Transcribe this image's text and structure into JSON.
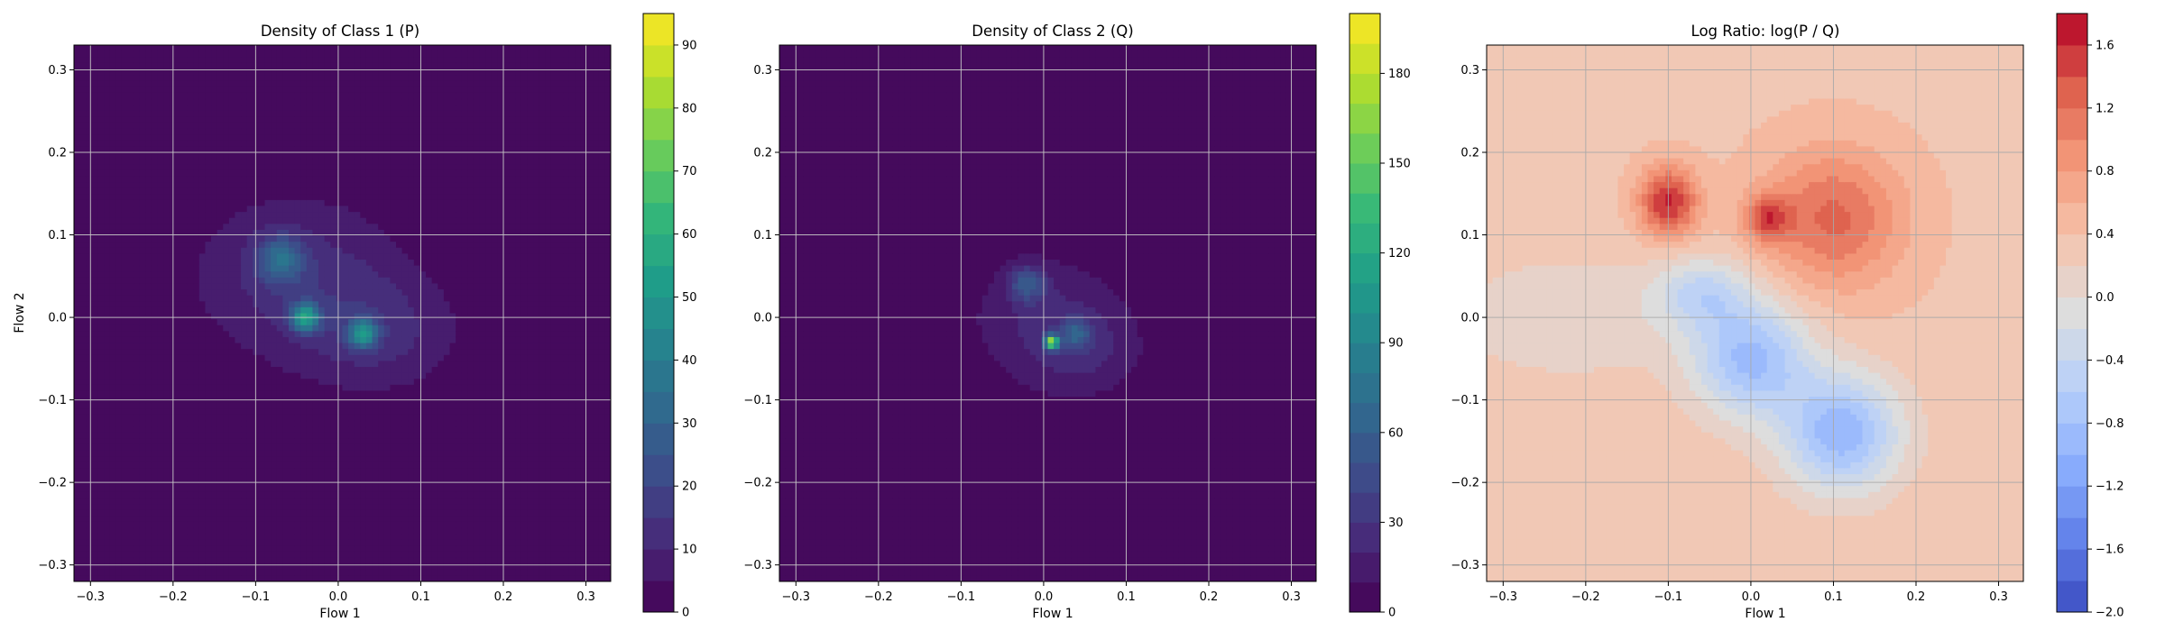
{
  "chart_data": [
    {
      "type": "heatmap",
      "title": "Density of Class 1 (P)",
      "xlabel": "Flow 1",
      "ylabel": "Flow 2",
      "xlim": [
        -0.32,
        0.33
      ],
      "ylim": [
        -0.32,
        0.33
      ],
      "xticks": [
        "−0.3",
        "−0.2",
        "−0.1",
        "0.0",
        "0.1",
        "0.2",
        "0.3"
      ],
      "yticks": [
        "−0.3",
        "−0.2",
        "−0.1",
        "0.0",
        "0.1",
        "0.2",
        "0.3"
      ],
      "grid": true,
      "colormap": "viridis",
      "colorbar": {
        "min": 0,
        "max": 95,
        "ticks": [
          "0",
          "10",
          "20",
          "30",
          "40",
          "50",
          "60",
          "70",
          "80",
          "90"
        ]
      },
      "blobs": [
        {
          "x": -0.05,
          "y": 0.05,
          "sx": 0.09,
          "sy": 0.07,
          "level": 12
        },
        {
          "x": 0.05,
          "y": -0.02,
          "sx": 0.07,
          "sy": 0.05,
          "level": 10
        },
        {
          "x": -0.04,
          "y": 0.0,
          "sx": 0.012,
          "sy": 0.012,
          "level": 45
        },
        {
          "x": 0.03,
          "y": -0.02,
          "sx": 0.012,
          "sy": 0.012,
          "level": 40
        },
        {
          "x": -0.07,
          "y": 0.07,
          "sx": 0.02,
          "sy": 0.02,
          "level": 25
        }
      ]
    },
    {
      "type": "heatmap",
      "title": "Density of Class 2 (Q)",
      "xlabel": "Flow 1",
      "ylabel": "",
      "xlim": [
        -0.32,
        0.33
      ],
      "ylim": [
        -0.32,
        0.33
      ],
      "xticks": [
        "−0.3",
        "−0.2",
        "−0.1",
        "0.0",
        "0.1",
        "0.2",
        "0.3"
      ],
      "yticks": [
        "−0.3",
        "−0.2",
        "−0.1",
        "0.0",
        "0.1",
        "0.2",
        "0.3"
      ],
      "grid": true,
      "colormap": "viridis",
      "colorbar": {
        "min": 0,
        "max": 200,
        "ticks": [
          "0",
          "30",
          "60",
          "90",
          "120",
          "150",
          "180"
        ]
      },
      "blobs": [
        {
          "x": 0.0,
          "y": 0.0,
          "sx": 0.07,
          "sy": 0.06,
          "level": 18
        },
        {
          "x": 0.05,
          "y": -0.04,
          "sx": 0.05,
          "sy": 0.04,
          "level": 16
        },
        {
          "x": 0.01,
          "y": -0.03,
          "sx": 0.006,
          "sy": 0.006,
          "level": 150
        },
        {
          "x": -0.02,
          "y": 0.04,
          "sx": 0.015,
          "sy": 0.015,
          "level": 45
        },
        {
          "x": 0.04,
          "y": -0.02,
          "sx": 0.012,
          "sy": 0.012,
          "level": 40
        }
      ]
    },
    {
      "type": "heatmap",
      "title": "Log Ratio: log(P / Q)",
      "xlabel": "Flow 1",
      "ylabel": "",
      "xlim": [
        -0.32,
        0.33
      ],
      "ylim": [
        -0.32,
        0.33
      ],
      "xticks": [
        "−0.3",
        "−0.2",
        "−0.1",
        "0.0",
        "0.1",
        "0.2",
        "0.3"
      ],
      "yticks": [
        "−0.3",
        "−0.2",
        "−0.1",
        "0.0",
        "0.1",
        "0.2",
        "0.3"
      ],
      "grid": true,
      "colormap": "coolwarm",
      "colorbar": {
        "min": -2.0,
        "max": 1.8,
        "ticks": [
          "−2.0",
          "−1.6",
          "−1.2",
          "−0.8",
          "−0.4",
          "0.0",
          "0.4",
          "0.8",
          "1.2",
          "1.6"
        ]
      },
      "background_value": 0.35,
      "blobs": [
        {
          "x": -0.1,
          "y": 0.14,
          "sx": 0.025,
          "sy": 0.03,
          "level": 1.3
        },
        {
          "x": 0.1,
          "y": 0.12,
          "sx": 0.06,
          "sy": 0.06,
          "level": 0.9
        },
        {
          "x": 0.02,
          "y": 0.12,
          "sx": 0.02,
          "sy": 0.02,
          "level": 0.9
        },
        {
          "x": 0.0,
          "y": -0.05,
          "sx": 0.05,
          "sy": 0.05,
          "level": -1.2
        },
        {
          "x": 0.11,
          "y": -0.14,
          "sx": 0.05,
          "sy": 0.05,
          "level": -1.3
        },
        {
          "x": -0.06,
          "y": 0.03,
          "sx": 0.04,
          "sy": 0.03,
          "level": -0.7
        },
        {
          "x": -0.22,
          "y": 0.0,
          "sx": 0.1,
          "sy": 0.05,
          "level": -0.35
        }
      ]
    }
  ]
}
